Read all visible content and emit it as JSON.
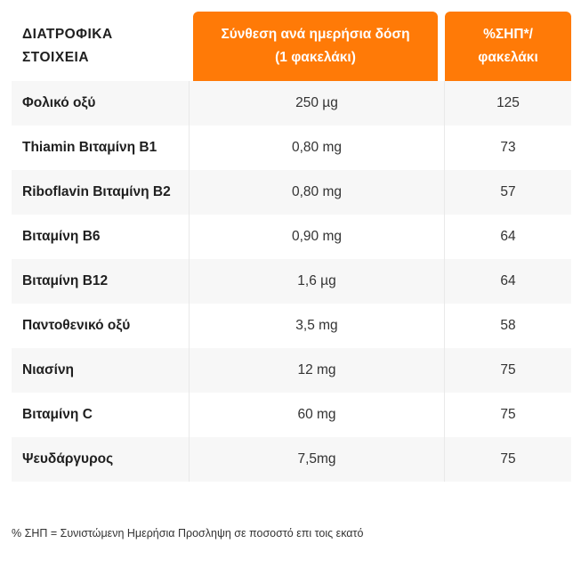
{
  "table": {
    "headers": {
      "name": "ΔΙΑΤΡΟΦΙΚΑ\nΣΤΟΙΧΕΙΑ",
      "dose": "Σύνθεση ανά ημερήσια δόση\n(1 φακελάκι)",
      "pct": "%ΣΗΠ*/\nφακελάκι"
    },
    "rows": [
      {
        "name": "Φολικό οξύ",
        "dose": "250 µg",
        "pct": "125"
      },
      {
        "name": "Thiamin Βιταμίνη Β1",
        "dose": "0,80 mg",
        "pct": "73"
      },
      {
        "name": "Riboflavin Βιταμίνη Β2",
        "dose": "0,80 mg",
        "pct": "57"
      },
      {
        "name": "Βιταμίνη Β6",
        "dose": "0,90 mg",
        "pct": "64"
      },
      {
        "name": "Βιταμίνη Β12",
        "dose": "1,6 µg",
        "pct": "64"
      },
      {
        "name": "Παντοθενικό οξύ",
        "dose": "3,5 mg",
        "pct": "58"
      },
      {
        "name": "Νιασίνη",
        "dose": "12 mg",
        "pct": "75"
      },
      {
        "name": "Βιταμίνη C",
        "dose": "60 mg",
        "pct": "75"
      },
      {
        "name": "Ψευδάργυρος",
        "dose": "7,5mg",
        "pct": "75"
      }
    ]
  },
  "footnote": "% ΣΗΠ = Συνιστώμενη Ημερήσια Προσληψη σε ποσοστό επι τοις εκατό",
  "colors": {
    "header_accent": "#ff7a07",
    "row_shade": "#f7f7f7"
  }
}
